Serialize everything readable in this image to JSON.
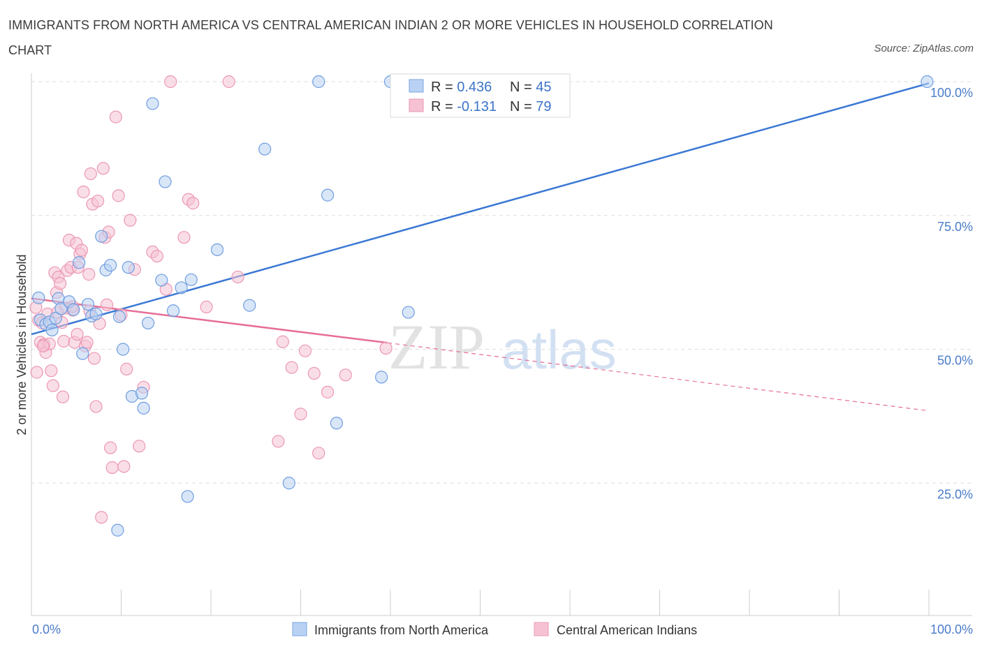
{
  "title": "IMMIGRANTS FROM NORTH AMERICA VS CENTRAL AMERICAN INDIAN 2 OR MORE VEHICLES IN HOUSEHOLD CORRELATION CHART",
  "source": "Source: ZipAtlas.com",
  "watermark": {
    "zip": "ZIP",
    "atlas": "atlas"
  },
  "colors": {
    "blue": "#3a78d4",
    "blue_fill": "#b9d1f3",
    "pink": "#e66e97",
    "pink_fill": "#f6c2d3",
    "axis_text": "#4a7cc9",
    "grid": "#dddddd"
  },
  "legend_box": {
    "rows": [
      {
        "r_label": "R = ",
        "r_value": "0.436",
        "n_label": "N = ",
        "n_value": "45"
      },
      {
        "r_label": "R = ",
        "r_value": "-0.131",
        "n_label": "N = ",
        "n_value": "79"
      }
    ]
  },
  "chart_data": {
    "type": "scatter",
    "title": "IMMIGRANTS FROM NORTH AMERICA VS CENTRAL AMERICAN INDIAN 2 OR MORE VEHICLES IN HOUSEHOLD CORRELATION CHART",
    "xlabel": "",
    "ylabel": "2 or more Vehicles in Household",
    "xlim": [
      0,
      100
    ],
    "ylim": [
      0,
      100
    ],
    "x_tick_labels": [
      "0.0%",
      "100.0%"
    ],
    "y_tick_labels": [
      "100.0%",
      "75.0%",
      "50.0%",
      "25.0%"
    ],
    "y_ticks": [
      100,
      75,
      50,
      25
    ],
    "grid": true,
    "legend_position": "bottom",
    "series": [
      {
        "name": "Immigrants from North America",
        "color": "#3a78d4",
        "r": 0.436,
        "n": 45,
        "trend": {
          "x": [
            0,
            100
          ],
          "y": [
            52.8,
            99.7
          ],
          "style": "solid"
        },
        "points": [
          [
            0.8,
            59.6
          ],
          [
            1.0,
            55.5
          ],
          [
            1.6,
            54.7
          ],
          [
            2.0,
            55.1
          ],
          [
            2.3,
            53.6
          ],
          [
            2.7,
            55.8
          ],
          [
            3.0,
            59.5
          ],
          [
            3.3,
            57.6
          ],
          [
            4.2,
            58.9
          ],
          [
            4.7,
            57.4
          ],
          [
            5.3,
            66.2
          ],
          [
            5.7,
            49.2
          ],
          [
            6.3,
            58.4
          ],
          [
            6.7,
            56.2
          ],
          [
            7.2,
            56.6
          ],
          [
            8.3,
            64.8
          ],
          [
            8.8,
            65.7
          ],
          [
            7.8,
            71.1
          ],
          [
            9.8,
            56.1
          ],
          [
            10.2,
            50.0
          ],
          [
            10.8,
            65.3
          ],
          [
            11.2,
            41.2
          ],
          [
            12.3,
            41.8
          ],
          [
            12.5,
            39.0
          ],
          [
            13.0,
            54.9
          ],
          [
            13.5,
            95.9
          ],
          [
            14.5,
            62.9
          ],
          [
            14.9,
            81.3
          ],
          [
            15.8,
            57.2
          ],
          [
            16.7,
            61.5
          ],
          [
            17.4,
            22.5
          ],
          [
            17.8,
            63.0
          ],
          [
            20.7,
            68.6
          ],
          [
            24.3,
            58.2
          ],
          [
            26.0,
            87.4
          ],
          [
            28.7,
            25.0
          ],
          [
            32.0,
            100.0
          ],
          [
            33.0,
            78.8
          ],
          [
            34.0,
            36.2
          ],
          [
            40.0,
            100.0
          ],
          [
            39.0,
            44.8
          ],
          [
            42.0,
            56.9
          ],
          [
            47.0,
            100.0
          ],
          [
            9.6,
            16.2
          ],
          [
            99.8,
            100.0
          ]
        ]
      },
      {
        "name": "Central American Indians",
        "color": "#e66e97",
        "r": -0.131,
        "n": 79,
        "trend": {
          "x": [
            0,
            39.7
          ],
          "y": [
            59.5,
            51.2
          ],
          "style": "solid",
          "dashed_extension": {
            "x": [
              39.7,
              100
            ],
            "y": [
              51.2,
              38.5
            ]
          }
        },
        "points": [
          [
            0.5,
            57.8
          ],
          [
            0.6,
            45.7
          ],
          [
            0.8,
            55.4
          ],
          [
            1.0,
            51.3
          ],
          [
            1.2,
            54.9
          ],
          [
            1.4,
            50.9
          ],
          [
            1.6,
            49.4
          ],
          [
            1.8,
            56.6
          ],
          [
            2.0,
            51.0
          ],
          [
            2.2,
            46.0
          ],
          [
            2.4,
            43.2
          ],
          [
            2.6,
            64.3
          ],
          [
            2.8,
            60.6
          ],
          [
            3.0,
            63.5
          ],
          [
            3.2,
            62.3
          ],
          [
            3.4,
            55.0
          ],
          [
            3.6,
            51.5
          ],
          [
            3.5,
            41.1
          ],
          [
            3.8,
            57.7
          ],
          [
            4.0,
            64.7
          ],
          [
            4.2,
            70.4
          ],
          [
            4.4,
            65.3
          ],
          [
            4.6,
            57.3
          ],
          [
            4.8,
            51.3
          ],
          [
            5.0,
            69.8
          ],
          [
            5.2,
            65.3
          ],
          [
            5.4,
            67.8
          ],
          [
            5.6,
            68.5
          ],
          [
            5.8,
            79.4
          ],
          [
            6.0,
            50.6
          ],
          [
            6.2,
            51.3
          ],
          [
            6.4,
            64.0
          ],
          [
            6.6,
            82.8
          ],
          [
            6.8,
            77.1
          ],
          [
            7.0,
            48.3
          ],
          [
            7.2,
            39.3
          ],
          [
            7.4,
            77.7
          ],
          [
            7.6,
            54.8
          ],
          [
            7.8,
            18.6
          ],
          [
            8.0,
            83.8
          ],
          [
            8.2,
            70.9
          ],
          [
            8.4,
            58.3
          ],
          [
            8.6,
            71.9
          ],
          [
            8.8,
            31.6
          ],
          [
            9.0,
            27.9
          ],
          [
            9.4,
            93.4
          ],
          [
            9.7,
            78.7
          ],
          [
            10.0,
            56.4
          ],
          [
            10.3,
            28.1
          ],
          [
            10.6,
            46.3
          ],
          [
            11.0,
            74.1
          ],
          [
            11.5,
            64.9
          ],
          [
            12.0,
            31.9
          ],
          [
            12.5,
            42.9
          ],
          [
            13.5,
            68.2
          ],
          [
            14.0,
            67.4
          ],
          [
            15.0,
            61.2
          ],
          [
            15.5,
            100.0
          ],
          [
            17.0,
            70.9
          ],
          [
            17.5,
            78.0
          ],
          [
            18.0,
            77.3
          ],
          [
            19.5,
            57.9
          ],
          [
            22.0,
            100.0
          ],
          [
            23.0,
            63.5
          ],
          [
            27.5,
            32.8
          ],
          [
            28.0,
            51.4
          ],
          [
            29.0,
            46.6
          ],
          [
            30.0,
            37.9
          ],
          [
            30.5,
            49.7
          ],
          [
            31.5,
            45.5
          ],
          [
            32.0,
            30.6
          ],
          [
            33.0,
            42.0
          ],
          [
            35.0,
            45.2
          ],
          [
            39.5,
            50.2
          ],
          [
            6.5,
            57.2
          ],
          [
            1.3,
            50.6
          ],
          [
            2.9,
            56.9
          ],
          [
            4.6,
            58.0
          ],
          [
            5.1,
            52.8
          ]
        ]
      }
    ]
  }
}
